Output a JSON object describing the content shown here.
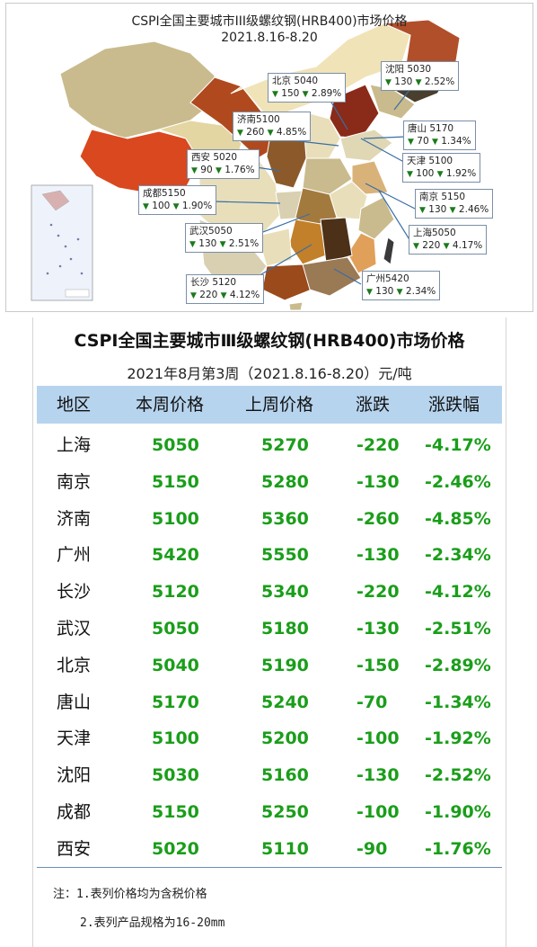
{
  "map": {
    "title": "CSPI全国主要城市III级螺纹钢(HRB400)市场价格",
    "date": "2021.8.16-8.20",
    "callouts": [
      {
        "city": "北京",
        "price": "5040",
        "change": "150",
        "pct": "2.89%"
      },
      {
        "city": "沈阳",
        "price": "5030",
        "change": "130",
        "pct": "2.52%"
      },
      {
        "city": "济南",
        "price": "5100",
        "change": "260",
        "pct": "4.85%"
      },
      {
        "city": "唐山",
        "price": "5170",
        "change": "70",
        "pct": "1.34%"
      },
      {
        "city": "西安",
        "price": "5020",
        "change": "90",
        "pct": "1.76%"
      },
      {
        "city": "天津",
        "price": "5100",
        "change": "100",
        "pct": "1.92%"
      },
      {
        "city": "成都",
        "price": "5150",
        "change": "100",
        "pct": "1.90%"
      },
      {
        "city": "南京",
        "price": "5150",
        "change": "130",
        "pct": "2.46%"
      },
      {
        "city": "武汉",
        "price": "5050",
        "change": "130",
        "pct": "2.51%"
      },
      {
        "city": "上海",
        "price": "5050",
        "change": "220",
        "pct": "4.17%"
      },
      {
        "city": "长沙",
        "price": "5120",
        "change": "220",
        "pct": "4.12%"
      },
      {
        "city": "广州",
        "price": "5420",
        "change": "130",
        "pct": "2.34%"
      }
    ]
  },
  "table": {
    "title": "CSPI全国主要城市Ⅲ级螺纹钢(HRB400)市场价格",
    "subtitle": "2021年8月第3周（2021.8.16-8.20）元/吨",
    "header_color": "#b7d4ee",
    "value_color": "#1a9e1a",
    "columns": [
      "地区",
      "本周价格",
      "上周价格",
      "涨跌",
      "涨跌幅"
    ],
    "rows": [
      [
        "上海",
        "5050",
        "5270",
        "-220",
        "-4.17%"
      ],
      [
        "南京",
        "5150",
        "5280",
        "-130",
        "-2.46%"
      ],
      [
        "济南",
        "5100",
        "5360",
        "-260",
        "-4.85%"
      ],
      [
        "广州",
        "5420",
        "5550",
        "-130",
        "-2.34%"
      ],
      [
        "长沙",
        "5120",
        "5340",
        "-220",
        "-4.12%"
      ],
      [
        "武汉",
        "5050",
        "5180",
        "-130",
        "-2.51%"
      ],
      [
        "北京",
        "5040",
        "5190",
        "-150",
        "-2.89%"
      ],
      [
        "唐山",
        "5170",
        "5240",
        "-70",
        "-1.34%"
      ],
      [
        "天津",
        "5100",
        "5200",
        "-100",
        "-1.92%"
      ],
      [
        "沈阳",
        "5030",
        "5160",
        "-130",
        "-2.52%"
      ],
      [
        "成都",
        "5150",
        "5250",
        "-100",
        "-1.90%"
      ],
      [
        "西安",
        "5020",
        "5110",
        "-90",
        "-1.76%"
      ]
    ],
    "notes": [
      "注：1.表列价格均为含税价格",
      "2.表列产品规格为16-20mm"
    ]
  },
  "chart_data": {
    "type": "table",
    "title": "CSPI全国主要城市Ⅲ级螺纹钢(HRB400)市场价格",
    "subtitle": "2021年8月第3周（2021.8.16-8.20）元/吨",
    "columns": [
      "地区",
      "本周价格",
      "上周价格",
      "涨跌",
      "涨跌幅"
    ],
    "categories": [
      "上海",
      "南京",
      "济南",
      "广州",
      "长沙",
      "武汉",
      "北京",
      "唐山",
      "天津",
      "沈阳",
      "成都",
      "西安"
    ],
    "series": [
      {
        "name": "本周价格",
        "values": [
          5050,
          5150,
          5100,
          5420,
          5120,
          5050,
          5040,
          5170,
          5100,
          5030,
          5150,
          5020
        ]
      },
      {
        "name": "上周价格",
        "values": [
          5270,
          5280,
          5360,
          5550,
          5340,
          5180,
          5190,
          5240,
          5200,
          5160,
          5250,
          5110
        ]
      },
      {
        "name": "涨跌",
        "values": [
          -220,
          -130,
          -260,
          -130,
          -220,
          -130,
          -150,
          -70,
          -100,
          -130,
          -100,
          -90
        ]
      },
      {
        "name": "涨跌幅",
        "values": [
          -4.17,
          -2.46,
          -4.85,
          -2.34,
          -4.12,
          -2.51,
          -2.89,
          -1.34,
          -1.92,
          -2.52,
          -1.9,
          -1.76
        ]
      }
    ]
  }
}
